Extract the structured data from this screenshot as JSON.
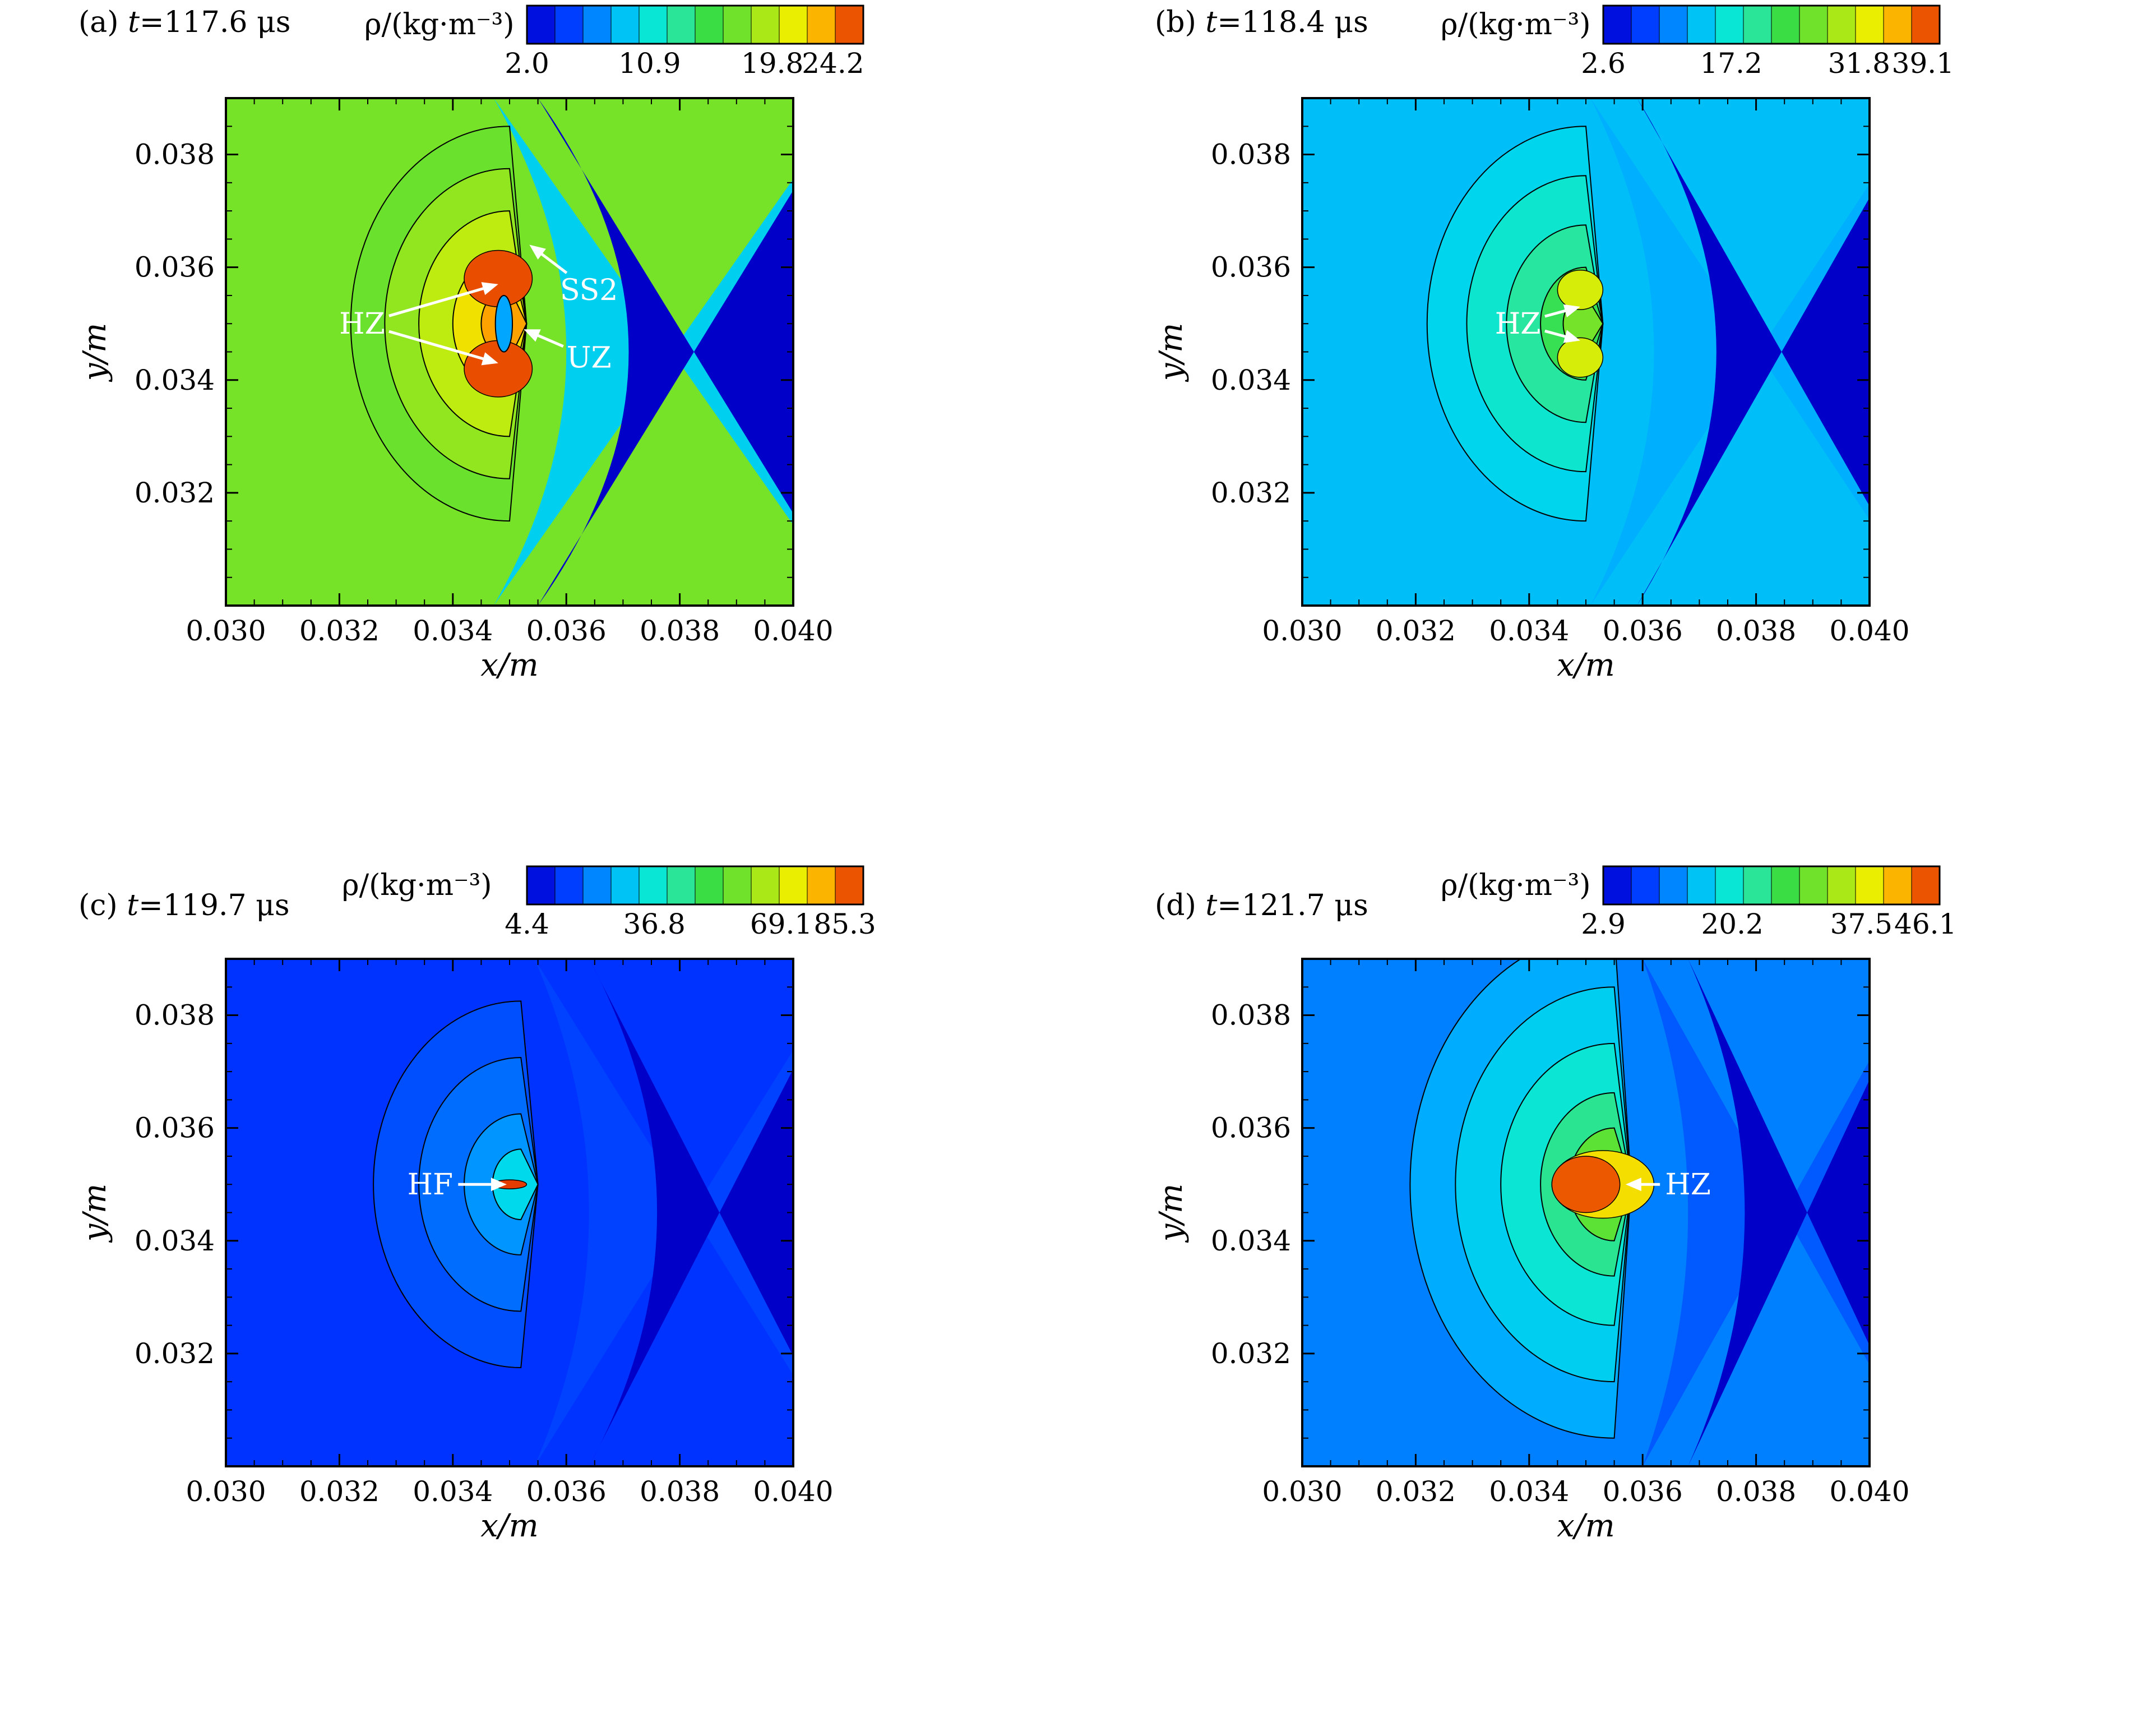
{
  "chart_data": [
    {
      "type": "heatmap",
      "panel_label": "(a)",
      "time_var": "t",
      "time_text": "=117.6 μs",
      "colorbar": {
        "label": "ρ/(kg·m⁻³)",
        "ticks": [
          2.0,
          10.9,
          19.8,
          24.2
        ],
        "tick_labels": [
          "2.0",
          "10.9",
          "19.8",
          "24.2"
        ],
        "range": [
          2.0,
          26.4
        ]
      },
      "xlabel": "x/m",
      "ylabel": "y/m",
      "xlim": [
        0.03,
        0.04
      ],
      "ylim": [
        0.03,
        0.039
      ],
      "xticks": [
        "0.030",
        "0.032",
        "0.034",
        "0.036",
        "0.038",
        "0.040"
      ],
      "yticks": [
        "0.032",
        "0.034",
        "0.036",
        "0.038"
      ],
      "fields": {
        "background_value": 17.5,
        "shock_x": 0.0371,
        "shock_curvature": 0.0016,
        "pre_shock_value": 2.0,
        "band_x": 0.036,
        "band_value": 9.6,
        "focus": [
          0.035,
          0.035
        ],
        "peak_value": 26.4,
        "rings": [
          {
            "r": 0.0028,
            "value": 17.0
          },
          {
            "r": 0.0022,
            "value": 18.5
          },
          {
            "r": 0.0016,
            "value": 20.0
          },
          {
            "r": 0.001,
            "value": 22.0
          },
          {
            "r": 0.0005,
            "value": 24.0
          }
        ],
        "lobes": [
          {
            "cx": 0.0348,
            "cy": 0.0358,
            "rx": 0.0006,
            "ry": 0.0005,
            "value": 25.5
          },
          {
            "cx": 0.0348,
            "cy": 0.0342,
            "rx": 0.0006,
            "ry": 0.0005,
            "value": 25.5
          }
        ],
        "hole": {
          "cx": 0.0349,
          "cy": 0.035,
          "rx": 0.00015,
          "ry": 0.0005,
          "value": 8.0
        }
      },
      "annotations": [
        {
          "text": "SS2",
          "tx": 0.0364,
          "ty": 0.0356,
          "ax": 0.03535,
          "ay": 0.0364
        },
        {
          "text": "HZ",
          "tx": 0.0324,
          "ty": 0.035,
          "ax": 0.0348,
          "ay": 0.0357
        },
        {
          "text": "HZ",
          "tx": 0.0324,
          "ty": 0.035,
          "ax": 0.0348,
          "ay": 0.0343
        },
        {
          "text": "UZ",
          "tx": 0.0364,
          "ty": 0.0344,
          "ax": 0.03525,
          "ay": 0.0349
        }
      ]
    },
    {
      "type": "heatmap",
      "panel_label": "(b)",
      "time_var": "t",
      "time_text": "=118.4 μs",
      "colorbar": {
        "label": "ρ/(kg·m⁻³)",
        "ticks": [
          2.6,
          17.2,
          31.8,
          39.1
        ],
        "tick_labels": [
          "2.6",
          "17.2",
          "31.8",
          "39.1"
        ],
        "range": [
          2.6,
          41.0
        ]
      },
      "xlabel": "x/m",
      "ylabel": "y/m",
      "xlim": [
        0.03,
        0.04
      ],
      "ylim": [
        0.03,
        0.039
      ],
      "xticks": [
        "0.030",
        "0.032",
        "0.034",
        "0.036",
        "0.038",
        "0.040"
      ],
      "yticks": [
        "0.032",
        "0.034",
        "0.036",
        "0.038"
      ],
      "fields": {
        "background_value": 13.5,
        "shock_x": 0.0373,
        "shock_curvature": 0.0014,
        "pre_shock_value": 2.6,
        "band_x": 0.0362,
        "band_value": 12.5,
        "focus": [
          0.035,
          0.035
        ],
        "peak_value": 39.1,
        "rings": [
          {
            "r": 0.0028,
            "value": 15.0
          },
          {
            "r": 0.0021,
            "value": 17.5
          },
          {
            "r": 0.0014,
            "value": 20.0
          },
          {
            "r": 0.0008,
            "value": 23.0
          },
          {
            "r": 0.0004,
            "value": 27.0
          }
        ],
        "lobes": [
          {
            "cx": 0.0349,
            "cy": 0.0356,
            "rx": 0.0004,
            "ry": 0.00035,
            "value": 32.0
          },
          {
            "cx": 0.0349,
            "cy": 0.0344,
            "rx": 0.0004,
            "ry": 0.00035,
            "value": 32.0
          }
        ],
        "hole": null
      },
      "annotations": [
        {
          "text": "HZ",
          "tx": 0.0338,
          "ty": 0.035,
          "ax": 0.0349,
          "ay": 0.0353
        },
        {
          "text": "HZ",
          "tx": 0.0338,
          "ty": 0.035,
          "ax": 0.0349,
          "ay": 0.0347
        }
      ]
    },
    {
      "type": "heatmap",
      "panel_label": "(c)",
      "time_var": "t",
      "time_text": "=119.7 μs",
      "colorbar": {
        "label": "ρ/(kg·m⁻³)",
        "ticks": [
          4.4,
          36.8,
          69.1,
          85.3
        ],
        "tick_labels": [
          "4.4",
          "36.8",
          "69.1",
          "85.3"
        ],
        "range": [
          4.4,
          90.0
        ]
      },
      "xlabel": "x/m",
      "ylabel": "y/m",
      "xlim": [
        0.03,
        0.04
      ],
      "ylim": [
        0.03,
        0.039
      ],
      "xticks": [
        "0.030",
        "0.032",
        "0.034",
        "0.036",
        "0.038",
        "0.040"
      ],
      "yticks": [
        "0.032",
        "0.034",
        "0.036",
        "0.038"
      ],
      "fields": {
        "background_value": 14.0,
        "shock_x": 0.0376,
        "shock_curvature": 0.0012,
        "pre_shock_value": 4.4,
        "band_x": 0.0364,
        "band_value": 15.5,
        "focus": [
          0.0352,
          0.035
        ],
        "peak_value": 90.0,
        "rings": [
          {
            "r": 0.0026,
            "value": 17.0
          },
          {
            "r": 0.0018,
            "value": 20.0
          },
          {
            "r": 0.001,
            "value": 24.0
          },
          {
            "r": 0.0005,
            "value": 33.0
          }
        ],
        "lobes": [
          {
            "cx": 0.035,
            "cy": 0.035,
            "rx": 0.0003,
            "ry": 8e-05,
            "value": 88.0
          }
        ],
        "hole": null
      },
      "annotations": [
        {
          "text": "HF",
          "tx": 0.0336,
          "ty": 0.035,
          "ax": 0.03495,
          "ay": 0.035
        }
      ]
    },
    {
      "type": "heatmap",
      "panel_label": "(d)",
      "time_var": "t",
      "time_text": "=121.7 μs",
      "colorbar": {
        "label": "ρ/(kg·m⁻³)",
        "ticks": [
          2.9,
          20.2,
          37.5,
          46.1
        ],
        "tick_labels": [
          "2.9",
          "20.2",
          "37.5",
          "46.1"
        ],
        "range": [
          2.9,
          48.0
        ]
      },
      "xlabel": "x/m",
      "ylabel": "y/m",
      "xlim": [
        0.03,
        0.04
      ],
      "ylim": [
        0.03,
        0.039
      ],
      "xticks": [
        "0.030",
        "0.032",
        "0.034",
        "0.036",
        "0.038",
        "0.040"
      ],
      "yticks": [
        "0.032",
        "0.034",
        "0.036",
        "0.038"
      ],
      "fields": {
        "background_value": 12.0,
        "shock_x": 0.0378,
        "shock_curvature": 0.001,
        "pre_shock_value": 2.9,
        "band_x": 0.0368,
        "band_value": 10.0,
        "focus": [
          0.0355,
          0.035
        ],
        "peak_value": 47.0,
        "rings": [
          {
            "r": 0.0036,
            "value": 14.5
          },
          {
            "r": 0.0028,
            "value": 17.0
          },
          {
            "r": 0.002,
            "value": 20.0
          },
          {
            "r": 0.0013,
            "value": 24.0
          },
          {
            "r": 0.0008,
            "value": 30.0
          }
        ],
        "lobes": [
          {
            "cx": 0.0353,
            "cy": 0.035,
            "rx": 0.0009,
            "ry": 0.0006,
            "value": 40.0
          },
          {
            "cx": 0.035,
            "cy": 0.035,
            "rx": 0.0006,
            "ry": 0.0005,
            "value": 46.0
          }
        ],
        "hole": null
      },
      "annotations": [
        {
          "text": "HZ",
          "tx": 0.0368,
          "ty": 0.035,
          "ax": 0.0357,
          "ay": 0.035
        }
      ]
    }
  ]
}
